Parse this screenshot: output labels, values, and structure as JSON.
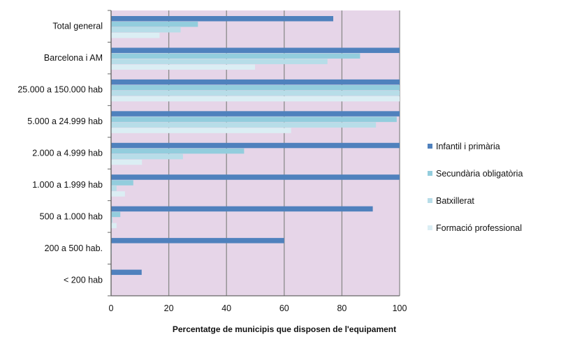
{
  "chart_data": {
    "type": "bar",
    "orientation": "horizontal",
    "categories": [
      "Total general",
      "Barcelona i AM",
      "25.000 a 150.000 hab",
      "5.000 a 24.999 hab",
      "2.000 a 4.999 hab",
      "1.000 a 1.999 hab",
      "500 a 1.000 hab",
      "200 a 500 hab.",
      "< 200 hab"
    ],
    "series": [
      {
        "name": "Infantil i primària",
        "color": "#4f81bd",
        "values": [
          77,
          100,
          100,
          100,
          100,
          100,
          90.7,
          60,
          10.6
        ]
      },
      {
        "name": "Secundària obligatòria",
        "color": "#93cddd",
        "values": [
          30.1,
          86.3,
          100,
          99,
          46.1,
          7.7,
          3.2,
          0,
          0
        ]
      },
      {
        "name": "Batxillerat",
        "color": "#b7dde8",
        "values": [
          24.1,
          75,
          100,
          91.8,
          24.9,
          1.9,
          0.5,
          0.2,
          0
        ]
      },
      {
        "name": "Formació professional",
        "color": "#dbeef4",
        "values": [
          16.8,
          49.9,
          100,
          62.4,
          10.7,
          4.8,
          1.9,
          0,
          0
        ]
      }
    ],
    "xlabel": "Percentatge de municipis que disposen de l'equipament",
    "ylabel": "",
    "xlim": [
      0,
      100
    ],
    "xticks": [
      "0",
      "20",
      "40",
      "60",
      "80",
      "100"
    ],
    "grid": true,
    "legend": "right",
    "plot_background": "#e6d5e8"
  }
}
